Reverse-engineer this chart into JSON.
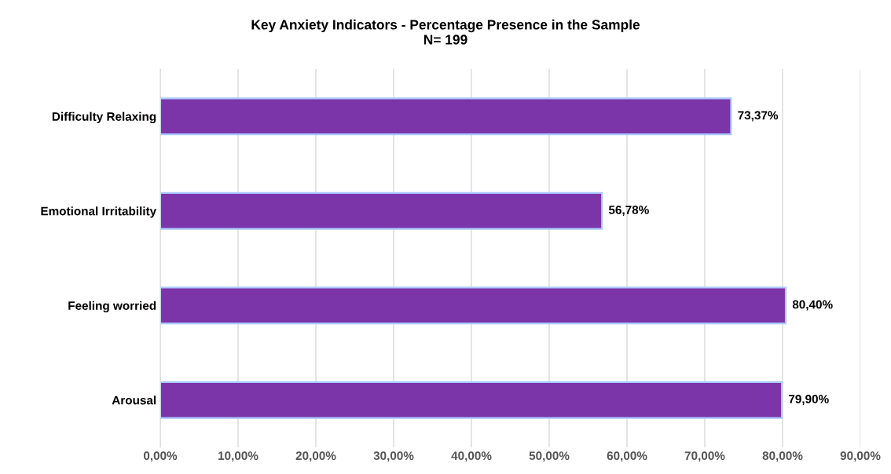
{
  "chart_data": {
    "type": "bar",
    "orientation": "horizontal",
    "title": "Key Anxiety Indicators - Percentage Presence in the Sample",
    "subtitle": "N= 199",
    "categories": [
      "Difficulty Relaxing",
      "Emotional Irritability",
      "Feeling worried",
      "Arousal"
    ],
    "values": [
      73.37,
      56.78,
      80.4,
      79.9
    ],
    "color": "#7b35a8",
    "value_labels": [
      "73,37%",
      "56,78%",
      "80,40%",
      "79,90%"
    ],
    "xlim": [
      0,
      90
    ],
    "xticks": [
      {
        "value": 0,
        "label": "0,00%"
      },
      {
        "value": 10,
        "label": "10,00%"
      },
      {
        "value": 20,
        "label": "20,00%"
      },
      {
        "value": 30,
        "label": "30,00%"
      },
      {
        "value": 40,
        "label": "40,00%"
      },
      {
        "value": 50,
        "label": "50,00%"
      },
      {
        "value": 60,
        "label": "60,00%"
      },
      {
        "value": 70,
        "label": "70,00%"
      },
      {
        "value": 80,
        "label": "80,00%"
      },
      {
        "value": 90,
        "label": "90,00%"
      }
    ],
    "grid": "x",
    "legend": false
  }
}
